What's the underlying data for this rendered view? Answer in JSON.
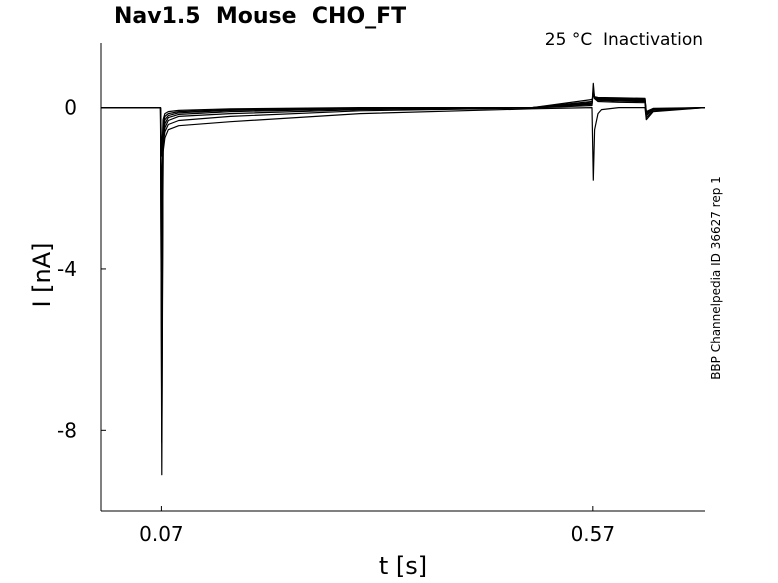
{
  "chart_data": {
    "type": "line",
    "title": "Nav1.5  Mouse  CHO_FT",
    "subtitle": "25 °C  Inactivation",
    "side_label": "BBP Channelpedia ID 36627 rep 1",
    "xlabel": "t [s]",
    "ylabel": "I [nA]",
    "xlim": [
      0.0,
      0.7
    ],
    "ylim": [
      -10.0,
      1.6
    ],
    "x_ticks": [
      0.07,
      0.57
    ],
    "x_tick_labels": [
      "0.07",
      "0.57"
    ],
    "y_ticks": [
      0,
      -4,
      -8
    ],
    "y_tick_labels": [
      "0",
      "-4",
      "-8"
    ],
    "grid": false,
    "legend": "none",
    "line_color": "#000000",
    "series": [
      {
        "x": [
          0.0,
          0.069,
          0.0705,
          0.072,
          0.074,
          0.078,
          0.09,
          0.15,
          0.3,
          0.5,
          0.569,
          0.5705,
          0.572,
          0.576,
          0.58,
          0.6,
          0.6305,
          0.632,
          0.64,
          0.7
        ],
        "y": [
          0,
          0,
          -9.1,
          -1.1,
          -0.75,
          -0.55,
          -0.45,
          -0.35,
          -0.15,
          -0.03,
          0,
          -1.8,
          -0.55,
          -0.15,
          -0.05,
          0,
          0,
          -0.3,
          -0.1,
          0
        ]
      },
      {
        "x": [
          0.0,
          0.069,
          0.0705,
          0.072,
          0.074,
          0.078,
          0.09,
          0.15,
          0.3,
          0.5,
          0.569,
          0.5705,
          0.572,
          0.576,
          0.6,
          0.6305,
          0.632,
          0.64,
          0.7
        ],
        "y": [
          0,
          0,
          -8.3,
          -0.9,
          -0.6,
          -0.42,
          -0.32,
          -0.22,
          -0.08,
          -0.01,
          0.05,
          0.6,
          0.22,
          0.15,
          0.13,
          0.12,
          -0.25,
          -0.08,
          0
        ]
      },
      {
        "x": [
          0.0,
          0.069,
          0.0705,
          0.072,
          0.074,
          0.078,
          0.09,
          0.15,
          0.3,
          0.5,
          0.569,
          0.5705,
          0.572,
          0.576,
          0.6,
          0.6305,
          0.632,
          0.64,
          0.7
        ],
        "y": [
          0,
          0,
          -7.0,
          -0.8,
          -0.5,
          -0.32,
          -0.22,
          -0.15,
          -0.05,
          0,
          0.08,
          0.45,
          0.25,
          0.18,
          0.16,
          0.15,
          -0.2,
          -0.05,
          0
        ]
      },
      {
        "x": [
          0.0,
          0.069,
          0.0705,
          0.072,
          0.074,
          0.078,
          0.09,
          0.15,
          0.3,
          0.5,
          0.569,
          0.5705,
          0.572,
          0.576,
          0.6,
          0.6305,
          0.632,
          0.64,
          0.7
        ],
        "y": [
          0,
          0,
          -5.5,
          -0.7,
          -0.4,
          -0.25,
          -0.17,
          -0.1,
          -0.03,
          0,
          0.1,
          0.4,
          0.24,
          0.2,
          0.18,
          0.17,
          -0.18,
          -0.05,
          0
        ]
      },
      {
        "x": [
          0.0,
          0.069,
          0.0705,
          0.072,
          0.074,
          0.078,
          0.09,
          0.15,
          0.3,
          0.5,
          0.569,
          0.5705,
          0.572,
          0.576,
          0.6,
          0.6305,
          0.632,
          0.64,
          0.7
        ],
        "y": [
          0,
          0,
          -4.0,
          -0.6,
          -0.3,
          -0.2,
          -0.13,
          -0.07,
          -0.02,
          0,
          0.12,
          0.35,
          0.24,
          0.22,
          0.2,
          0.19,
          -0.15,
          -0.04,
          0
        ]
      },
      {
        "x": [
          0.0,
          0.069,
          0.0705,
          0.072,
          0.074,
          0.078,
          0.09,
          0.15,
          0.3,
          0.5,
          0.569,
          0.5705,
          0.572,
          0.576,
          0.6,
          0.6305,
          0.632,
          0.64,
          0.7
        ],
        "y": [
          0,
          0,
          -2.5,
          -0.45,
          -0.22,
          -0.15,
          -0.1,
          -0.05,
          -0.01,
          0,
          0.15,
          0.32,
          0.26,
          0.24,
          0.22,
          0.21,
          -0.12,
          -0.03,
          0
        ]
      },
      {
        "x": [
          0.0,
          0.069,
          0.0705,
          0.072,
          0.074,
          0.078,
          0.09,
          0.15,
          0.3,
          0.5,
          0.569,
          0.5705,
          0.572,
          0.576,
          0.6,
          0.6305,
          0.632,
          0.64,
          0.7
        ],
        "y": [
          0,
          0,
          -1.2,
          -0.3,
          -0.15,
          -0.1,
          -0.07,
          -0.03,
          0,
          0,
          0.2,
          0.3,
          0.27,
          0.25,
          0.24,
          0.23,
          -0.1,
          -0.02,
          0
        ]
      }
    ]
  }
}
